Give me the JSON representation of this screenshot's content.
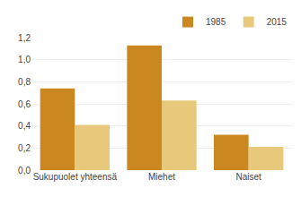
{
  "chart_data": {
    "type": "bar",
    "categories": [
      "Sukupuolet yhteensä",
      "Miehet",
      "Naiset"
    ],
    "series": [
      {
        "name": "1985",
        "color": "#CC8820",
        "values": [
          0.74,
          1.13,
          0.32
        ]
      },
      {
        "name": "2015",
        "color": "#E8C87A",
        "values": [
          0.41,
          0.63,
          0.21
        ]
      }
    ],
    "ylim": [
      0,
      1.2
    ],
    "yticks": [
      {
        "value": 0.0,
        "label": "0,0"
      },
      {
        "value": 0.2,
        "label": "0,2"
      },
      {
        "value": 0.4,
        "label": "0,4"
      },
      {
        "value": 0.6,
        "label": "0,6"
      },
      {
        "value": 0.8,
        "label": "0,8"
      },
      {
        "value": 1.0,
        "label": "1,0"
      },
      {
        "value": 1.2,
        "label": "1,2"
      }
    ],
    "grid": true,
    "legend": "upper right"
  }
}
